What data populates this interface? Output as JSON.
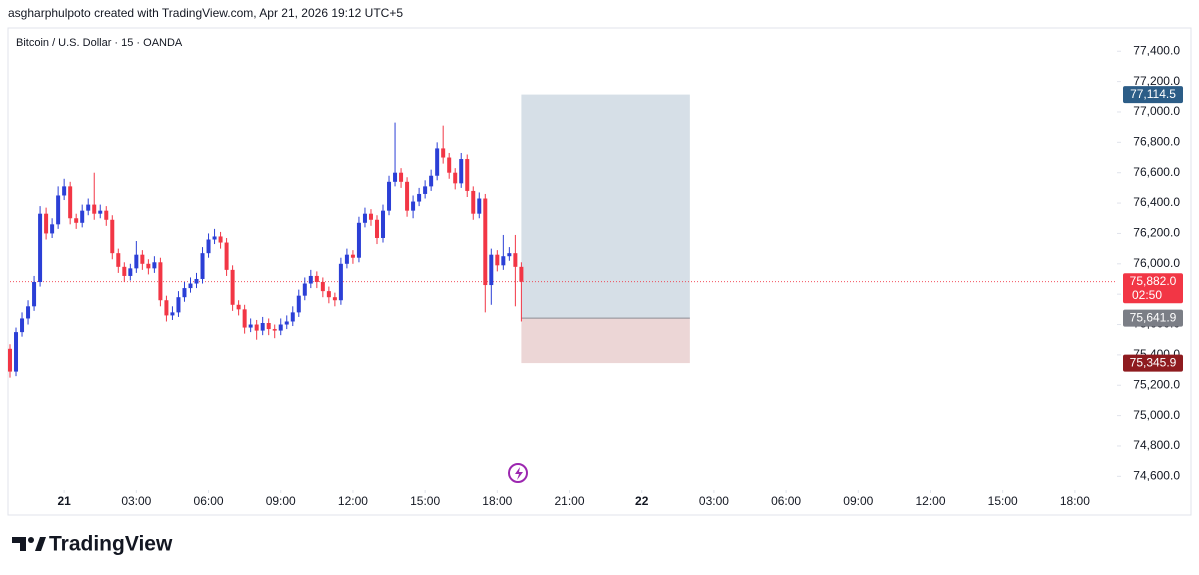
{
  "header": "asgharphulpoto created with TradingView.com, Apr 21, 2026 19:12 UTC+5",
  "footer": "TradingView",
  "chart_data": {
    "type": "candlestick",
    "title": "Bitcoin / U.S. Dollar · 15 · OANDA",
    "up_color": "#2b3fd6",
    "down_color": "#f23645",
    "x": [
      -2.25,
      -2,
      -1.75,
      -1.5,
      -1.25,
      -1,
      -0.75,
      -0.5,
      -0.25,
      0,
      0.25,
      0.5,
      0.75,
      1,
      1.25,
      1.5,
      1.75,
      2,
      2.25,
      2.5,
      2.75,
      3,
      3.25,
      3.5,
      3.75,
      4,
      4.25,
      4.5,
      4.75,
      5,
      5.25,
      5.5,
      5.75,
      6,
      6.25,
      6.5,
      6.75,
      7,
      7.25,
      7.5,
      7.75,
      8,
      8.25,
      8.5,
      8.75,
      9,
      9.25,
      9.5,
      9.75,
      10,
      10.25,
      10.5,
      10.75,
      11,
      11.25,
      11.5,
      11.75,
      12,
      12.25,
      12.5,
      12.75,
      13,
      13.25,
      13.5,
      13.75,
      14,
      14.25,
      14.5,
      14.75,
      15,
      15.25,
      15.5,
      15.75,
      16,
      16.25,
      16.5,
      16.75,
      17,
      17.25,
      17.5,
      17.75,
      18,
      18.25,
      18.5,
      18.75,
      19
    ],
    "open": [
      75440,
      75290,
      75550,
      75640,
      75720,
      75880,
      76330,
      76200,
      76260,
      76450,
      76510,
      76300,
      76270,
      76350,
      76390,
      76330,
      76350,
      76290,
      76070,
      75980,
      75920,
      75970,
      76060,
      76000,
      75970,
      76010,
      75760,
      75660,
      75680,
      75780,
      75840,
      75870,
      75900,
      76070,
      76160,
      76180,
      76140,
      75960,
      75730,
      75700,
      75580,
      75600,
      75560,
      75610,
      75570,
      75560,
      75600,
      75620,
      75680,
      75790,
      75870,
      75920,
      75880,
      75820,
      75780,
      75760,
      76000,
      76060,
      76040,
      76270,
      76330,
      76290,
      76170,
      76350,
      76540,
      76600,
      76540,
      76350,
      76410,
      76460,
      76510,
      76580,
      76760,
      76700,
      76600,
      76530,
      76690,
      76480,
      76330,
      76430,
      75860,
      76060,
      75990,
      76050,
      76070,
      75980
    ],
    "high": [
      75470,
      75580,
      75680,
      75760,
      75920,
      76380,
      76370,
      76300,
      76510,
      76560,
      76540,
      76330,
      76390,
      76430,
      76600,
      76390,
      76380,
      76320,
      76100,
      76010,
      76000,
      76150,
      76090,
      76030,
      76050,
      76040,
      75790,
      75720,
      75820,
      75880,
      75910,
      75940,
      76110,
      76200,
      76230,
      76210,
      76170,
      75990,
      75760,
      75730,
      75640,
      75630,
      75650,
      75640,
      75600,
      75640,
      75660,
      75720,
      75830,
      75910,
      75960,
      75950,
      75910,
      75850,
      75810,
      76040,
      76100,
      76090,
      76310,
      76370,
      76360,
      76320,
      76390,
      76580,
      76930,
      76630,
      76570,
      76450,
      76500,
      76550,
      76620,
      76800,
      76910,
      76730,
      76630,
      76730,
      76720,
      76510,
      76470,
      76460,
      76100,
      76090,
      76190,
      76110,
      76190,
      76010
    ],
    "low": [
      75250,
      75260,
      75520,
      75600,
      75690,
      75850,
      76160,
      76170,
      76230,
      76420,
      76260,
      76230,
      76240,
      76320,
      76290,
      76300,
      76250,
      76030,
      75940,
      75880,
      75890,
      75940,
      75960,
      75930,
      75940,
      75720,
      75620,
      75630,
      75650,
      75750,
      75810,
      75840,
      75870,
      76040,
      76130,
      76100,
      75920,
      75690,
      75660,
      75540,
      75550,
      75500,
      75530,
      75530,
      75510,
      75530,
      75570,
      75590,
      75650,
      75760,
      75840,
      75840,
      75780,
      75740,
      75720,
      75730,
      75970,
      76000,
      76010,
      76240,
      76250,
      76130,
      76140,
      76320,
      76510,
      76500,
      76310,
      76300,
      76380,
      76430,
      76480,
      76550,
      76660,
      76560,
      76490,
      76500,
      76440,
      76290,
      76300,
      75680,
      75730,
      75950,
      75960,
      76020,
      75720,
      75620
    ],
    "close": [
      75290,
      75550,
      75640,
      75720,
      75880,
      76330,
      76200,
      76260,
      76450,
      76510,
      76300,
      76270,
      76350,
      76390,
      76330,
      76350,
      76290,
      76070,
      75980,
      75920,
      75970,
      76060,
      76000,
      75970,
      76010,
      75760,
      75660,
      75680,
      75780,
      75840,
      75870,
      75900,
      76070,
      76160,
      76180,
      76140,
      75960,
      75730,
      75700,
      75580,
      75600,
      75560,
      75610,
      75570,
      75560,
      75600,
      75620,
      75680,
      75790,
      75870,
      75920,
      75880,
      75820,
      75780,
      75760,
      76000,
      76060,
      76040,
      76270,
      76330,
      76290,
      76170,
      76350,
      76540,
      76600,
      76540,
      76350,
      76410,
      76460,
      76510,
      76580,
      76760,
      76700,
      76600,
      76530,
      76690,
      76480,
      76330,
      76430,
      75860,
      76060,
      75990,
      76050,
      76070,
      75980,
      75882
    ],
    "xlim": [
      -2.25,
      43.75
    ],
    "ylim": [
      74510,
      77540
    ],
    "xticks": [
      {
        "value": 0,
        "label": "21"
      },
      {
        "value": 3,
        "label": "03:00"
      },
      {
        "value": 6,
        "label": "06:00"
      },
      {
        "value": 9,
        "label": "09:00"
      },
      {
        "value": 12,
        "label": "12:00"
      },
      {
        "value": 15,
        "label": "15:00"
      },
      {
        "value": 18,
        "label": "18:00"
      },
      {
        "value": 21,
        "label": "21:00"
      },
      {
        "value": 24,
        "label": "22"
      },
      {
        "value": 27,
        "label": "03:00"
      },
      {
        "value": 30,
        "label": "06:00"
      },
      {
        "value": 33,
        "label": "09:00"
      },
      {
        "value": 36,
        "label": "12:00"
      },
      {
        "value": 39,
        "label": "15:00"
      },
      {
        "value": 42,
        "label": "18:00"
      }
    ],
    "yticks": [
      {
        "value": 74600,
        "label": "74,600.0"
      },
      {
        "value": 74800,
        "label": "74,800.0"
      },
      {
        "value": 75000,
        "label": "75,000.0"
      },
      {
        "value": 75200,
        "label": "75,200.0"
      },
      {
        "value": 75400,
        "label": "75,400.0"
      },
      {
        "value": 75600,
        "label": "75,600.0"
      },
      {
        "value": 75800,
        "label": "75,800.0"
      },
      {
        "value": 76000,
        "label": "76,000.0"
      },
      {
        "value": 76200,
        "label": "76,200.0"
      },
      {
        "value": 76400,
        "label": "76,400.0"
      },
      {
        "value": 76600,
        "label": "76,600.0"
      },
      {
        "value": 76800,
        "label": "76,800.0"
      },
      {
        "value": 77000,
        "label": "77,000.0"
      },
      {
        "value": 77200,
        "label": "77,200.0"
      },
      {
        "value": 77400,
        "label": "77,400.0"
      }
    ],
    "position": {
      "x": [
        19,
        26
      ],
      "target": {
        "value": 77114.5,
        "label": "77,114.5",
        "color": "#2c5d87"
      },
      "entry": {
        "value": 75641.9,
        "label": "75,641.9",
        "color": "#7b7e86"
      },
      "stop": {
        "value": 75345.9,
        "label": "75,345.9",
        "color": "#8e1b1f"
      }
    },
    "last_price": {
      "value": 75882,
      "label": "75,882.0",
      "countdown": "02:50",
      "color": "#f23645"
    }
  }
}
